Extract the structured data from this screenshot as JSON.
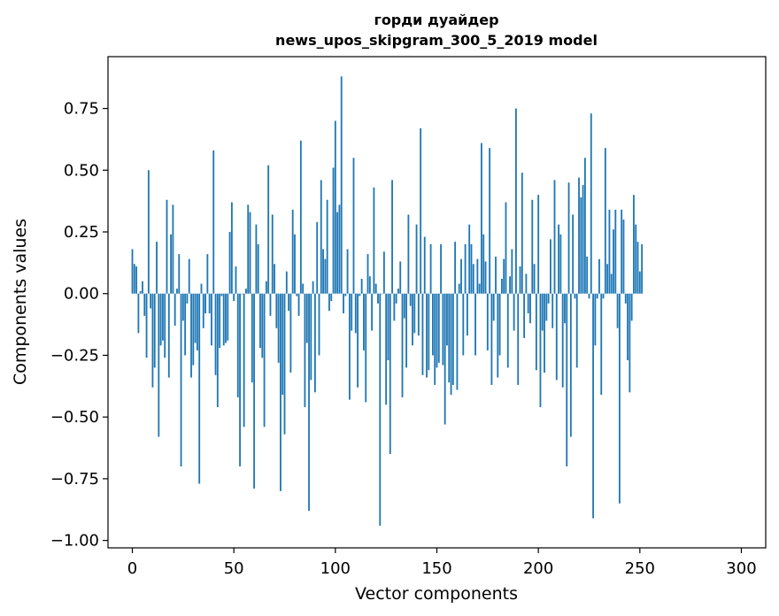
{
  "chart_data": {
    "type": "bar",
    "title": [
      "горди дуайдер",
      "news_upos_skipgram_300_5_2019 model"
    ],
    "xlabel": "Vector components",
    "ylabel": "Components values",
    "xlim": [
      -12,
      312
    ],
    "ylim": [
      -1.03,
      0.96
    ],
    "xticks": [
      0,
      50,
      100,
      150,
      200,
      250,
      300
    ],
    "xtick_labels": [
      "0",
      "50",
      "100",
      "150",
      "200",
      "250",
      "300"
    ],
    "yticks": [
      0.75,
      0.5,
      0.25,
      0.0,
      -0.25,
      -0.5,
      -0.75,
      -1.0
    ],
    "ytick_labels": [
      "0.75",
      "0.50",
      "0.25",
      "0.00",
      "−0.25",
      "−0.50",
      "−0.75",
      "−1.00"
    ],
    "bar_color": "#1f77b4",
    "series": [
      {
        "name": "components",
        "x_start": 0,
        "values": [
          0.18,
          0.12,
          0.11,
          -0.16,
          0.01,
          0.05,
          -0.09,
          -0.26,
          0.5,
          -0.06,
          -0.38,
          -0.3,
          0.21,
          -0.58,
          -0.21,
          -0.19,
          -0.26,
          0.38,
          -0.34,
          0.24,
          0.36,
          -0.13,
          0.02,
          0.16,
          -0.7,
          -0.11,
          -0.25,
          -0.04,
          0.14,
          -0.34,
          -0.29,
          -0.2,
          -0.23,
          -0.77,
          0.04,
          -0.14,
          -0.08,
          0.16,
          -0.08,
          -0.21,
          0.58,
          -0.33,
          -0.46,
          -0.22,
          -0.01,
          -0.21,
          -0.2,
          -0.19,
          0.25,
          0.37,
          -0.03,
          0.11,
          -0.42,
          -0.7,
          0.0,
          -0.54,
          0.02,
          0.36,
          0.33,
          -0.36,
          -0.79,
          0.28,
          0.2,
          -0.22,
          -0.26,
          -0.54,
          0.05,
          0.52,
          -0.09,
          0.32,
          0.12,
          -0.14,
          -0.28,
          -0.8,
          -0.41,
          -0.57,
          0.09,
          -0.07,
          -0.32,
          0.34,
          0.24,
          -0.01,
          -0.09,
          0.62,
          0.04,
          -0.46,
          -0.2,
          -0.88,
          -0.35,
          0.05,
          -0.4,
          0.29,
          -0.25,
          0.46,
          0.18,
          0.14,
          0.38,
          -0.07,
          -0.03,
          0.51,
          0.7,
          0.33,
          0.36,
          0.88,
          -0.08,
          -0.01,
          0.18,
          -0.43,
          -0.15,
          0.55,
          -0.16,
          -0.38,
          -0.01,
          0.06,
          -0.23,
          -0.44,
          0.16,
          0.07,
          -0.15,
          0.43,
          0.04,
          -0.04,
          -0.94,
          0.0,
          0.17,
          -0.45,
          -0.27,
          -0.65,
          0.46,
          -0.11,
          -0.04,
          0.02,
          0.13,
          -0.42,
          -0.1,
          -0.3,
          0.32,
          -0.05,
          -0.21,
          -0.16,
          0.28,
          -0.17,
          0.67,
          -0.33,
          0.23,
          -0.34,
          -0.31,
          0.2,
          -0.25,
          -0.37,
          -0.3,
          -0.28,
          0.2,
          -0.29,
          -0.53,
          -0.21,
          -0.36,
          -0.41,
          -0.37,
          0.21,
          -0.39,
          0.04,
          0.14,
          -0.25,
          0.2,
          -0.17,
          0.28,
          0.2,
          0.12,
          -0.25,
          0.14,
          0.04,
          0.61,
          0.24,
          0.13,
          -0.23,
          0.59,
          -0.37,
          -0.11,
          0.15,
          -0.34,
          -0.25,
          0.06,
          0.14,
          0.37,
          -0.3,
          0.07,
          0.18,
          -0.15,
          0.75,
          -0.37,
          0.11,
          0.49,
          -0.18,
          0.08,
          -0.08,
          -0.12,
          0.38,
          0.12,
          -0.31,
          0.4,
          -0.46,
          -0.15,
          -0.32,
          -0.11,
          -0.04,
          0.22,
          -0.14,
          0.46,
          -0.35,
          0.28,
          0.24,
          -0.38,
          -0.12,
          -0.7,
          0.45,
          -0.58,
          0.32,
          -0.02,
          -0.3,
          0.47,
          0.39,
          0.44,
          0.55,
          0.15,
          -0.02,
          0.73,
          -0.91,
          -0.21,
          -0.02,
          0.14,
          -0.41,
          -0.02,
          0.59,
          0.12,
          0.34,
          0.08,
          0.26,
          0.34,
          -0.14,
          -0.85,
          0.34,
          0.3,
          -0.04,
          -0.27,
          -0.4,
          -0.11,
          0.4,
          0.28,
          0.21,
          0.09,
          0.2
        ]
      }
    ]
  }
}
